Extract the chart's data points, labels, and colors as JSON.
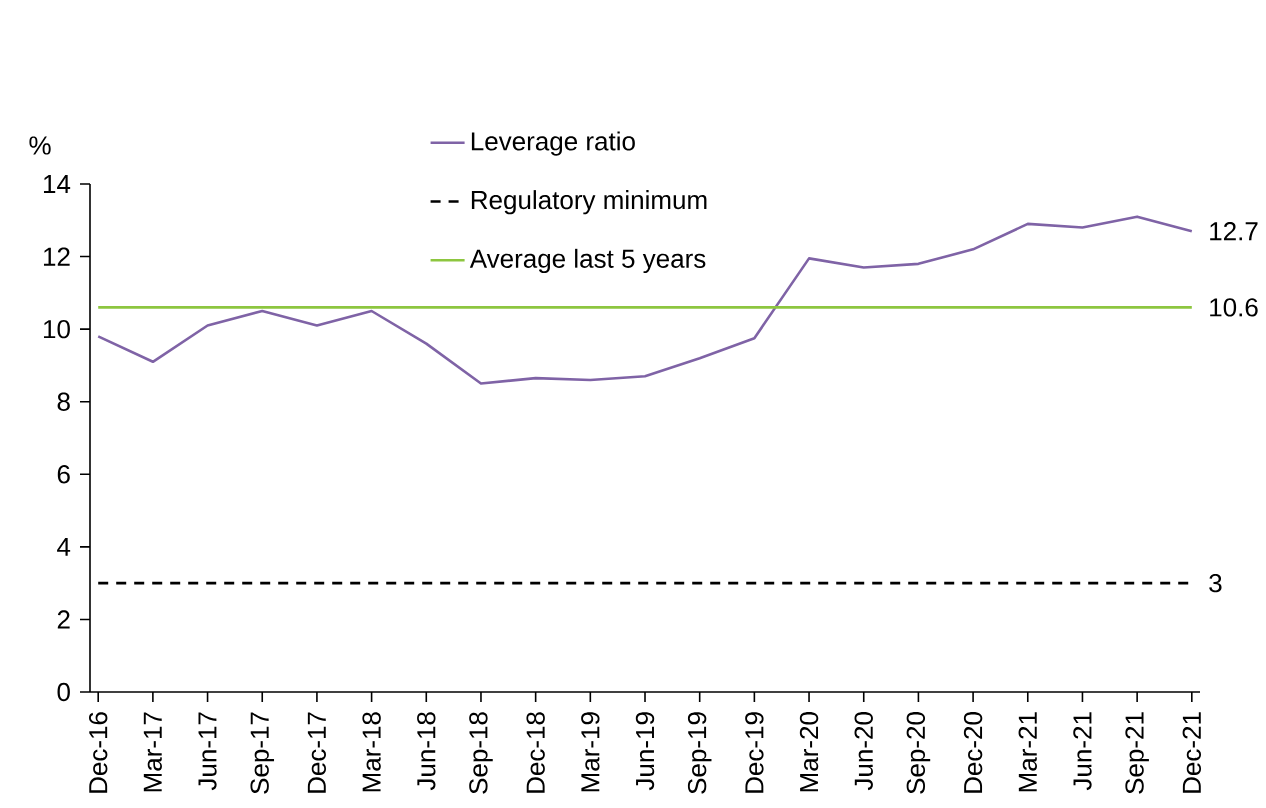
{
  "chart_data": {
    "type": "line",
    "ylabel": "%",
    "categories": [
      "Dec-16",
      "Mar-17",
      "Jun-17",
      "Sep-17",
      "Dec-17",
      "Mar-18",
      "Jun-18",
      "Sep-18",
      "Dec-18",
      "Mar-19",
      "Jun-19",
      "Sep-19",
      "Dec-19",
      "Mar-20",
      "Jun-20",
      "Sep-20",
      "Dec-20",
      "Mar-21",
      "Jun-21",
      "Sep-21",
      "Dec-21"
    ],
    "series": [
      {
        "name": "Leverage ratio",
        "color": "#7f63a6",
        "line_style": "solid",
        "values": [
          9.8,
          9.1,
          10.1,
          10.5,
          10.1,
          10.5,
          9.6,
          8.5,
          8.65,
          8.6,
          8.7,
          9.2,
          9.75,
          11.95,
          11.7,
          11.8,
          12.2,
          12.9,
          12.8,
          13.1,
          12.7
        ],
        "value_labels": [
          null,
          null,
          null,
          null,
          null,
          null,
          null,
          null,
          null,
          null,
          null,
          null,
          null,
          null,
          null,
          null,
          null,
          null,
          null,
          null,
          "12.7"
        ]
      },
      {
        "name": "Regulatory minimum",
        "color": "#000000",
        "line_style": "dashed",
        "values": [
          3,
          3,
          3,
          3,
          3,
          3,
          3,
          3,
          3,
          3,
          3,
          3,
          3,
          3,
          3,
          3,
          3,
          3,
          3,
          3,
          3
        ],
        "value_labels": [
          null,
          null,
          null,
          null,
          null,
          null,
          null,
          null,
          null,
          null,
          null,
          null,
          null,
          null,
          null,
          null,
          null,
          null,
          null,
          null,
          "3"
        ]
      },
      {
        "name": "Average last 5 years",
        "color": "#8dc63f",
        "line_style": "solid",
        "values": [
          10.6,
          10.6,
          10.6,
          10.6,
          10.6,
          10.6,
          10.6,
          10.6,
          10.6,
          10.6,
          10.6,
          10.6,
          10.6,
          10.6,
          10.6,
          10.6,
          10.6,
          10.6,
          10.6,
          10.6,
          10.6
        ],
        "value_labels": [
          null,
          null,
          null,
          null,
          null,
          null,
          null,
          null,
          null,
          null,
          null,
          null,
          null,
          null,
          null,
          null,
          null,
          null,
          null,
          null,
          "10.6"
        ]
      }
    ],
    "ylim": [
      0,
      14
    ],
    "yticks": [
      0,
      2,
      4,
      6,
      8,
      10,
      12,
      14
    ],
    "legend": "top"
  }
}
